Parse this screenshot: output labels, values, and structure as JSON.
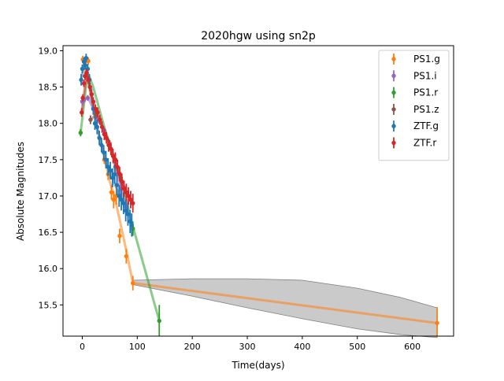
{
  "chart_data": {
    "type": "scatter",
    "title": "2020hgw using sn2p",
    "xlabel": "Time(days)",
    "ylabel": "Absolute Magnitudes",
    "xlim": [
      -35,
      675
    ],
    "ylim": [
      15.07,
      19.07
    ],
    "y_inverted": false,
    "grid": false,
    "legend_position": "top-right",
    "x_ticks": [
      0,
      100,
      200,
      300,
      400,
      500,
      600
    ],
    "y_ticks": [
      15.5,
      16.0,
      16.5,
      17.0,
      17.5,
      18.0,
      18.5,
      19.0
    ],
    "x_tick_labels": [
      "0",
      "100",
      "200",
      "300",
      "400",
      "500",
      "600"
    ],
    "y_tick_labels": [
      "15.5",
      "16.0",
      "16.5",
      "17.0",
      "17.5",
      "18.0",
      "18.5",
      "19.0"
    ],
    "series": [
      {
        "name": "PS1.g",
        "color": "#ff7f0e",
        "points": [
          [
            1,
            18.88,
            0.05
          ],
          [
            6,
            18.85,
            0.05
          ],
          [
            11,
            18.86,
            0.05
          ],
          [
            40,
            17.5,
            0.06
          ],
          [
            47,
            17.3,
            0.08
          ],
          [
            53,
            17.05,
            0.1
          ],
          [
            57,
            16.95,
            0.12
          ],
          [
            62,
            17.0,
            0.12
          ],
          [
            68,
            16.45,
            0.1
          ],
          [
            80,
            16.17,
            0.1
          ],
          [
            92,
            15.8,
            0.1
          ],
          [
            645,
            15.25,
            0.22
          ]
        ],
        "model": [
          [
            1,
            18.88
          ],
          [
            10,
            18.6
          ],
          [
            20,
            18.2
          ],
          [
            30,
            17.85
          ],
          [
            40,
            17.55
          ],
          [
            50,
            17.2
          ],
          [
            60,
            16.95
          ],
          [
            70,
            16.6
          ],
          [
            80,
            16.25
          ],
          [
            92,
            15.8
          ],
          [
            645,
            15.25
          ]
        ],
        "band": [
          [
            92,
            15.78,
            15.84
          ],
          [
            200,
            15.62,
            15.86
          ],
          [
            300,
            15.46,
            15.86
          ],
          [
            400,
            15.31,
            15.84
          ],
          [
            500,
            15.17,
            15.73
          ],
          [
            580,
            15.09,
            15.6
          ],
          [
            645,
            15.05,
            15.46
          ]
        ]
      },
      {
        "name": "PS1.i",
        "color": "#9467bd",
        "points": [
          [
            0,
            18.3,
            0.05
          ],
          [
            3,
            18.32,
            0.04
          ],
          [
            10,
            18.35,
            0.04
          ],
          [
            20,
            18.2,
            0.05
          ],
          [
            30,
            18.05,
            0.05
          ],
          [
            40,
            17.9,
            0.05
          ],
          [
            50,
            17.7,
            0.06
          ],
          [
            60,
            17.4,
            0.07
          ],
          [
            70,
            17.1,
            0.08
          ],
          [
            80,
            16.85,
            0.1
          ]
        ],
        "model": [
          [
            0,
            18.3
          ],
          [
            10,
            18.36
          ],
          [
            20,
            18.2
          ],
          [
            30,
            18.05
          ],
          [
            40,
            17.9
          ],
          [
            50,
            17.7
          ],
          [
            60,
            17.4
          ],
          [
            70,
            17.1
          ],
          [
            80,
            16.85
          ]
        ]
      },
      {
        "name": "PS1.r",
        "color": "#2ca02c",
        "points": [
          [
            -3,
            17.87,
            0.05
          ],
          [
            92,
            16.55,
            0.1
          ],
          [
            140,
            15.28,
            0.22
          ]
        ],
        "model": [
          [
            -3,
            17.87
          ],
          [
            10,
            18.7
          ],
          [
            20,
            18.5
          ],
          [
            40,
            17.95
          ],
          [
            60,
            17.45
          ],
          [
            80,
            16.95
          ],
          [
            92,
            16.58
          ],
          [
            140,
            15.28
          ]
        ]
      },
      {
        "name": "PS1.z",
        "color": "#8c564b",
        "points": [
          [
            15,
            18.05,
            0.06
          ],
          [
            25,
            18.12,
            0.06
          ],
          [
            50,
            17.7,
            0.07
          ],
          [
            60,
            17.5,
            0.08
          ],
          [
            70,
            17.25,
            0.08
          ],
          [
            80,
            17.05,
            0.1
          ]
        ],
        "model": [
          [
            15,
            18.05
          ],
          [
            25,
            18.12
          ],
          [
            40,
            17.9
          ],
          [
            50,
            17.7
          ],
          [
            60,
            17.5
          ],
          [
            70,
            17.25
          ],
          [
            80,
            17.05
          ]
        ]
      },
      {
        "name": "ZTF.g",
        "color": "#1f77b4",
        "points": [
          [
            -2,
            18.6,
            0.08
          ],
          [
            0,
            18.75,
            0.06
          ],
          [
            3,
            18.85,
            0.06
          ],
          [
            5,
            18.8,
            0.06
          ],
          [
            7,
            18.9,
            0.06
          ],
          [
            10,
            18.75,
            0.07
          ],
          [
            13,
            18.6,
            0.08
          ],
          [
            17,
            18.4,
            0.08
          ],
          [
            20,
            18.2,
            0.08
          ],
          [
            23,
            18.0,
            0.09
          ],
          [
            27,
            17.95,
            0.1
          ],
          [
            31,
            17.8,
            0.1
          ],
          [
            35,
            17.7,
            0.1
          ],
          [
            39,
            17.6,
            0.1
          ],
          [
            43,
            17.5,
            0.12
          ],
          [
            47,
            17.4,
            0.12
          ],
          [
            51,
            17.35,
            0.12
          ],
          [
            55,
            17.25,
            0.13
          ],
          [
            59,
            17.3,
            0.13
          ],
          [
            63,
            17.15,
            0.14
          ],
          [
            67,
            17.0,
            0.15
          ],
          [
            71,
            16.95,
            0.15
          ],
          [
            75,
            16.9,
            0.15
          ],
          [
            79,
            16.8,
            0.15
          ],
          [
            83,
            16.75,
            0.16
          ],
          [
            87,
            16.65,
            0.16
          ],
          [
            90,
            16.6,
            0.16
          ]
        ],
        "model": [
          [
            -2,
            18.6
          ],
          [
            5,
            18.85
          ],
          [
            15,
            18.45
          ],
          [
            25,
            18.0
          ],
          [
            35,
            17.72
          ],
          [
            45,
            17.45
          ],
          [
            55,
            17.25
          ],
          [
            65,
            17.05
          ],
          [
            75,
            16.9
          ],
          [
            85,
            16.72
          ],
          [
            90,
            16.6
          ]
        ]
      },
      {
        "name": "ZTF.r",
        "color": "#d62728",
        "points": [
          [
            -1,
            18.15,
            0.06
          ],
          [
            1,
            18.35,
            0.05
          ],
          [
            3,
            18.55,
            0.05
          ],
          [
            5,
            18.65,
            0.05
          ],
          [
            8,
            18.7,
            0.05
          ],
          [
            11,
            18.6,
            0.05
          ],
          [
            14,
            18.5,
            0.06
          ],
          [
            17,
            18.4,
            0.06
          ],
          [
            20,
            18.3,
            0.06
          ],
          [
            24,
            18.2,
            0.06
          ],
          [
            28,
            18.15,
            0.07
          ],
          [
            32,
            18.05,
            0.07
          ],
          [
            36,
            17.95,
            0.08
          ],
          [
            40,
            17.85,
            0.08
          ],
          [
            44,
            17.8,
            0.08
          ],
          [
            48,
            17.7,
            0.09
          ],
          [
            52,
            17.65,
            0.09
          ],
          [
            56,
            17.55,
            0.1
          ],
          [
            60,
            17.5,
            0.1
          ],
          [
            64,
            17.4,
            0.1
          ],
          [
            68,
            17.3,
            0.1
          ],
          [
            72,
            17.2,
            0.11
          ],
          [
            76,
            17.1,
            0.11
          ],
          [
            80,
            17.05,
            0.12
          ],
          [
            84,
            17.0,
            0.12
          ],
          [
            88,
            16.95,
            0.12
          ],
          [
            92,
            16.9,
            0.13
          ]
        ],
        "model": [
          [
            -1,
            18.15
          ],
          [
            8,
            18.7
          ],
          [
            20,
            18.3
          ],
          [
            32,
            18.05
          ],
          [
            44,
            17.8
          ],
          [
            56,
            17.55
          ],
          [
            68,
            17.3
          ],
          [
            80,
            17.05
          ],
          [
            92,
            16.9
          ]
        ]
      }
    ]
  }
}
